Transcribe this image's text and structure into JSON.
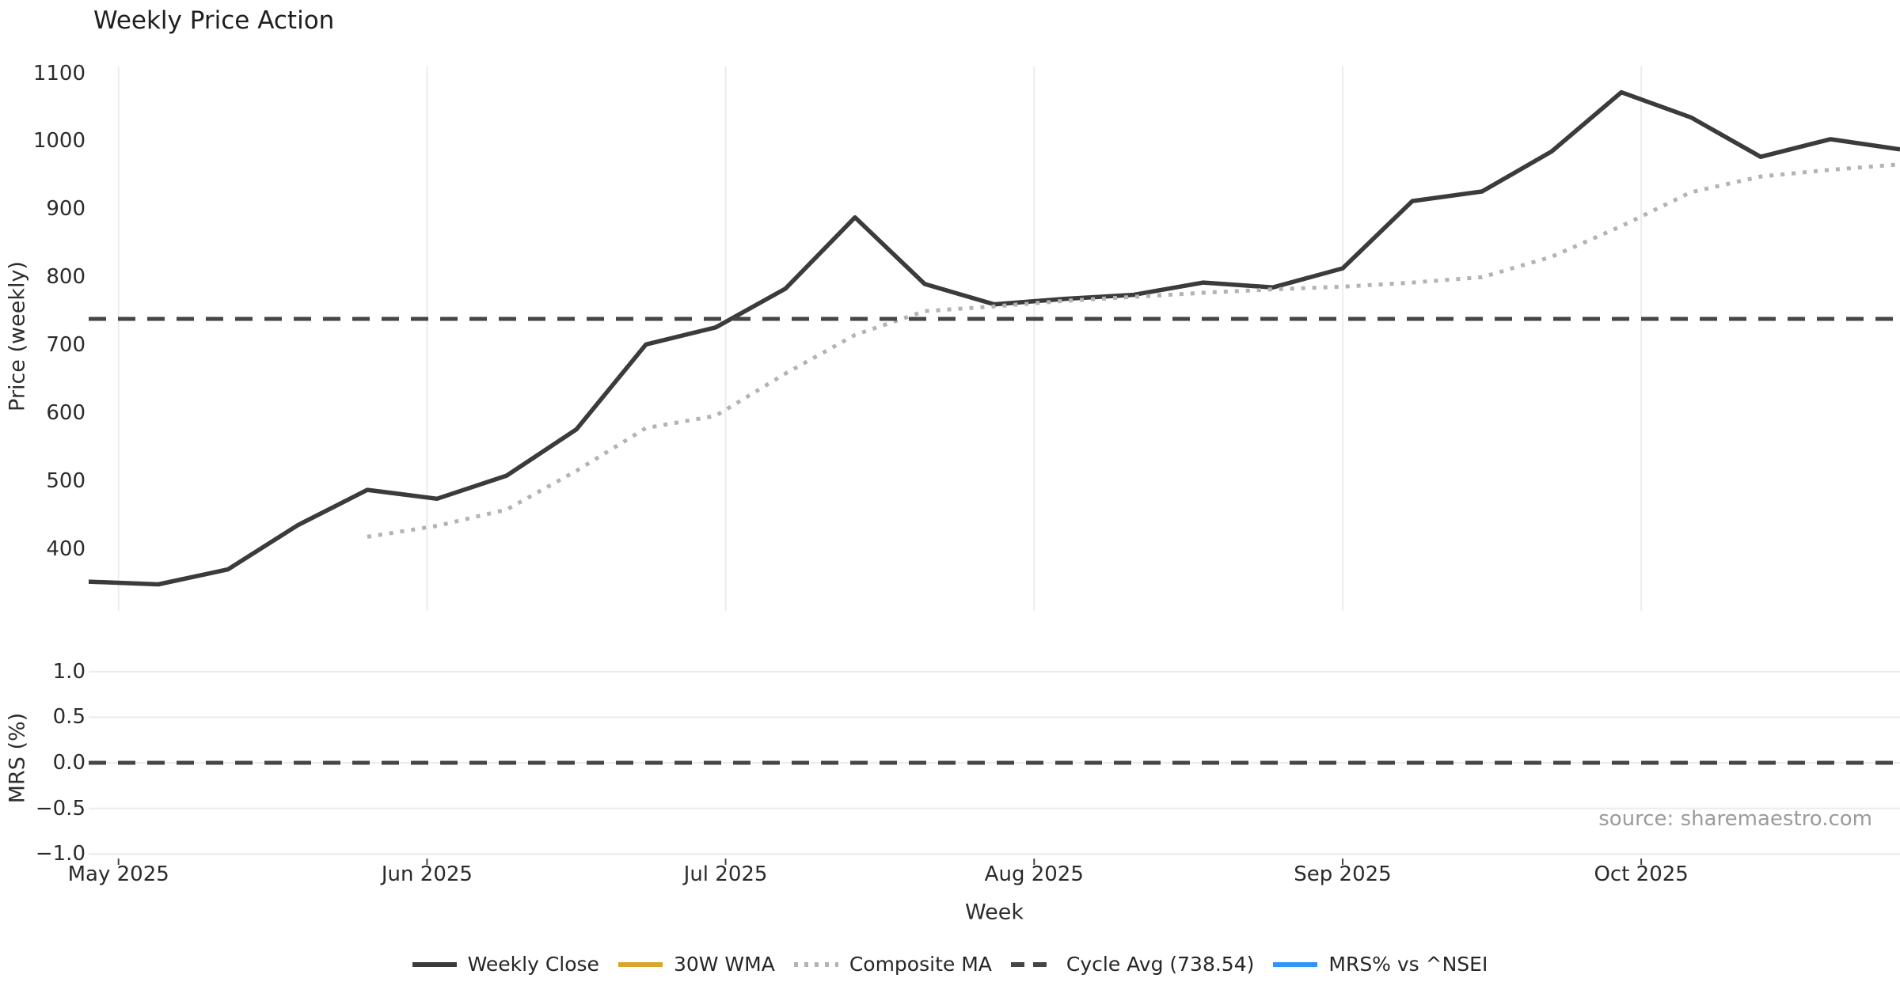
{
  "title": "Weekly Price Action",
  "source": "source: sharemaestro.com",
  "colors": {
    "weekly_close": "#3b3b3b",
    "wma_30w": "#d9a62b",
    "composite_ma": "#b3b3b3",
    "cycle_avg": "#454545",
    "mrs": "#2e96f5",
    "gridline": "#ececec",
    "text_dark": "#262626",
    "text_muted": "#9b9b9b"
  },
  "legend": {
    "items": [
      {
        "label": "Weekly Close",
        "style": "solid",
        "color_key": "weekly_close"
      },
      {
        "label": "30W WMA",
        "style": "solid",
        "color_key": "wma_30w"
      },
      {
        "label": "Composite MA",
        "style": "dotted",
        "color_key": "composite_ma"
      },
      {
        "label": "Cycle Avg (738.54)",
        "style": "dashed",
        "color_key": "cycle_avg"
      },
      {
        "label": "MRS% vs ^NSEI",
        "style": "solid",
        "color_key": "mrs"
      }
    ]
  },
  "chart_data": {
    "type": "line",
    "title": "Weekly Price Action",
    "xlabel": "Week",
    "x_weeks": [
      "2025-04-28",
      "2025-05-05",
      "2025-05-12",
      "2025-05-19",
      "2025-05-26",
      "2025-06-02",
      "2025-06-09",
      "2025-06-16",
      "2025-06-23",
      "2025-06-30",
      "2025-07-07",
      "2025-07-14",
      "2025-07-21",
      "2025-07-28",
      "2025-08-04",
      "2025-08-11",
      "2025-08-18",
      "2025-08-25",
      "2025-09-01",
      "2025-09-08",
      "2025-09-15",
      "2025-09-22",
      "2025-09-29",
      "2025-10-06",
      "2025-10-13",
      "2025-10-20",
      "2025-10-27"
    ],
    "x_month_ticks": [
      {
        "label": "May 2025",
        "date": "2025-05-01"
      },
      {
        "label": "Jun 2025",
        "date": "2025-06-01"
      },
      {
        "label": "Jul 2025",
        "date": "2025-07-01"
      },
      {
        "label": "Aug 2025",
        "date": "2025-08-01"
      },
      {
        "label": "Sep 2025",
        "date": "2025-09-01"
      },
      {
        "label": "Oct 2025",
        "date": "2025-10-01"
      }
    ],
    "panels": [
      {
        "name": "price",
        "ylabel": "Price (weekly)",
        "yticks": [
          1100,
          1000,
          900,
          800,
          700,
          600,
          500,
          400
        ],
        "ytick_labels": [
          "1100",
          "1000",
          "900",
          "800",
          "700",
          "600",
          "500",
          "400"
        ],
        "ylim": [
          309,
          1110
        ],
        "grid": "vertical-months",
        "series": [
          {
            "name": "Weekly Close",
            "style": "solid",
            "color_key": "weekly_close",
            "width": 5.5,
            "values": [
              352,
              348,
              370,
              435,
              487,
              474,
              508,
              576,
              701,
              726,
              783,
              888,
              790,
              760,
              768,
              774,
              792,
              785,
              813,
              912,
              926,
              985,
              1072,
              1035,
              977,
              1003,
              988
            ]
          },
          {
            "name": "30W WMA",
            "style": "solid",
            "color_key": "wma_30w",
            "width": 5,
            "values": []
          },
          {
            "name": "Composite MA",
            "style": "dotted",
            "color_key": "composite_ma",
            "width": 5,
            "values": [
              null,
              null,
              null,
              null,
              418,
              434,
              458,
              515,
              578,
              596,
              658,
              715,
              750,
              757,
              765,
              771,
              777,
              782,
              786,
              792,
              800,
              830,
              875,
              925,
              948,
              958,
              966
            ]
          },
          {
            "name": "Cycle Avg (738.54)",
            "style": "dashed",
            "color_key": "cycle_avg",
            "width": 5,
            "constant": 738.54
          }
        ]
      },
      {
        "name": "mrs",
        "ylabel": "MRS (%)",
        "yticks": [
          1.0,
          0.5,
          0.0,
          -0.5,
          -1.0
        ],
        "ytick_labels": [
          "1.0",
          "0.5",
          "0.0",
          "−0.5",
          "−1.0"
        ],
        "ylim": [
          -1.05,
          1.05
        ],
        "grid": "horizontal",
        "series": [
          {
            "name": "MRS% vs ^NSEI",
            "style": "solid",
            "color_key": "mrs",
            "width": 5,
            "values": []
          },
          {
            "name": "zero-line",
            "style": "dashed",
            "color_key": "cycle_avg",
            "width": 5,
            "constant": 0
          }
        ]
      }
    ]
  }
}
